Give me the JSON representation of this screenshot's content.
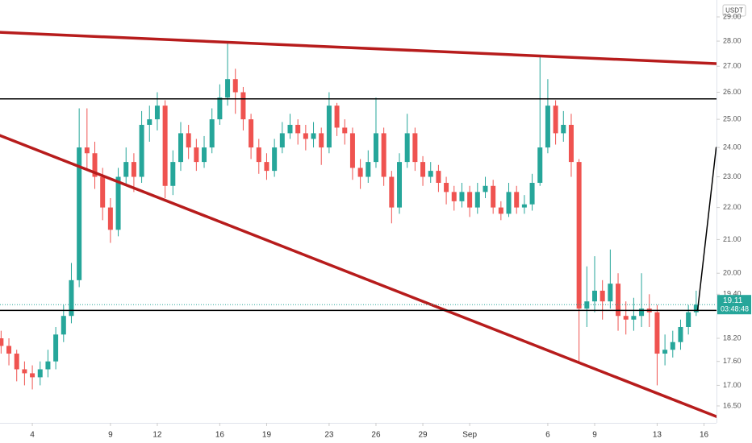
{
  "chart_data": {
    "type": "candlestick",
    "currency": "USDT",
    "last_price_label": "19.11",
    "countdown": "03:48:48",
    "log_scale": true,
    "grid": false,
    "up_color": "#26a69a",
    "down_color": "#ef5350",
    "xlim": [
      -2.07,
      43.8
    ],
    "ylim": [
      16.1,
      29.72
    ],
    "xticks": [
      {
        "value": 0,
        "label": "4"
      },
      {
        "value": 5,
        "label": "9"
      },
      {
        "value": 8,
        "label": "12"
      },
      {
        "value": 12,
        "label": "16"
      },
      {
        "value": 15,
        "label": "19"
      },
      {
        "value": 19,
        "label": "23"
      },
      {
        "value": 22,
        "label": "26"
      },
      {
        "value": 25,
        "label": "29"
      },
      {
        "value": 28,
        "label": "Sep"
      },
      {
        "value": 33,
        "label": "6"
      },
      {
        "value": 36,
        "label": "9"
      },
      {
        "value": 40,
        "label": "13"
      },
      {
        "value": 43,
        "label": "16"
      }
    ],
    "yticks": [
      {
        "value": 29,
        "label": "29.00"
      },
      {
        "value": 28,
        "label": "28.00"
      },
      {
        "value": 27,
        "label": "27.00"
      },
      {
        "value": 26,
        "label": "26.00"
      },
      {
        "value": 25,
        "label": "25.00"
      },
      {
        "value": 24,
        "label": "24.00"
      },
      {
        "value": 23,
        "label": "23.00"
      },
      {
        "value": 22,
        "label": "22.00"
      },
      {
        "value": 21,
        "label": "21.00"
      },
      {
        "value": 20,
        "label": "20.00"
      },
      {
        "value": 19.4,
        "label": "19.40"
      },
      {
        "value": 18.2,
        "label": "18.20"
      },
      {
        "value": 17.6,
        "label": "17.60"
      },
      {
        "value": 17,
        "label": "17.00"
      },
      {
        "value": 16.5,
        "label": "16.50"
      }
    ],
    "x": [
      -2,
      -1.5,
      -1,
      -0.5,
      0,
      0.5,
      1,
      1.5,
      2,
      2.5,
      3,
      3.5,
      4,
      4.5,
      5,
      5.5,
      6,
      6.5,
      7,
      7.5,
      8,
      8.5,
      9,
      9.5,
      10,
      10.5,
      11,
      11.5,
      12,
      12.5,
      13,
      13.5,
      14,
      14.5,
      15,
      15.5,
      16,
      16.5,
      17,
      17.5,
      18,
      18.5,
      19,
      19.5,
      20,
      20.5,
      21,
      21.5,
      22,
      22.5,
      23,
      23.5,
      24,
      24.5,
      25,
      25.5,
      26,
      26.5,
      27,
      27.5,
      28,
      28.5,
      29,
      29.5,
      30,
      30.5,
      31,
      31.5,
      32,
      32.5,
      33,
      33.5,
      34,
      34.5,
      35,
      35.5,
      36,
      36.5,
      37,
      37.5,
      38,
      38.5,
      39,
      39.5,
      40,
      40.5,
      41,
      41.5,
      42,
      42.5
    ],
    "open": [
      18.2,
      18.0,
      17.8,
      17.4,
      17.3,
      17.2,
      17.4,
      17.6,
      18.3,
      18.8,
      19.8,
      24.0,
      23.8,
      23.0,
      22.0,
      21.3,
      23.0,
      23.5,
      23.0,
      24.8,
      25.0,
      25.5,
      22.7,
      23.5,
      24.5,
      24.0,
      23.5,
      24.0,
      25.0,
      25.8,
      26.5,
      26.0,
      25.0,
      24.0,
      23.5,
      23.2,
      24.0,
      24.5,
      24.8,
      24.5,
      24.3,
      24.5,
      24.0,
      25.5,
      24.7,
      24.5,
      23.3,
      23.0,
      23.5,
      24.5,
      23.0,
      22.0,
      23.5,
      24.5,
      23.5,
      23.0,
      23.2,
      22.8,
      22.5,
      22.2,
      22.5,
      22.0,
      22.5,
      22.7,
      22.0,
      21.8,
      22.5,
      22.0,
      22.1,
      22.8,
      24.0,
      25.5,
      24.5,
      24.8,
      23.5,
      19.0,
      19.2,
      19.5,
      19.2,
      19.7,
      18.8,
      18.7,
      18.8,
      19.0,
      18.9,
      17.8,
      17.9,
      18.1,
      18.5,
      18.9
    ],
    "high": [
      18.4,
      18.2,
      17.9,
      17.6,
      17.5,
      17.6,
      17.9,
      18.5,
      19.1,
      20.3,
      25.4,
      25.4,
      24.2,
      23.3,
      22.3,
      23.3,
      24.0,
      23.8,
      25.3,
      25.5,
      26.0,
      25.7,
      23.9,
      24.9,
      24.8,
      24.3,
      24.4,
      25.4,
      26.3,
      27.9,
      26.9,
      26.2,
      25.2,
      24.3,
      23.8,
      24.3,
      24.9,
      25.2,
      25.0,
      24.8,
      24.9,
      24.7,
      26.0,
      25.6,
      25.0,
      24.7,
      23.6,
      23.9,
      25.8,
      24.7,
      23.2,
      23.8,
      25.2,
      24.7,
      23.7,
      23.5,
      23.4,
      23.0,
      22.7,
      22.8,
      22.7,
      22.8,
      23.0,
      22.9,
      22.2,
      22.8,
      22.7,
      22.4,
      23.1,
      27.4,
      26.5,
      25.7,
      25.3,
      25.2,
      23.6,
      20.2,
      20.5,
      19.8,
      20.7,
      20.0,
      19.2,
      19.3,
      20.0,
      19.4,
      19.1,
      18.3,
      18.4,
      18.7,
      19.1,
      19.5
    ],
    "low": [
      17.8,
      17.5,
      17.1,
      17.0,
      16.9,
      17.0,
      17.2,
      17.4,
      18.1,
      18.6,
      19.6,
      23.2,
      22.6,
      21.6,
      20.9,
      21.1,
      22.7,
      22.5,
      22.8,
      24.2,
      24.6,
      22.3,
      22.4,
      23.2,
      23.6,
      23.2,
      23.3,
      23.8,
      24.8,
      25.5,
      25.2,
      24.6,
      23.6,
      23.1,
      22.9,
      23.0,
      23.8,
      24.3,
      24.1,
      23.9,
      24.0,
      23.4,
      23.8,
      24.4,
      24.1,
      22.9,
      22.6,
      22.8,
      23.3,
      22.7,
      21.5,
      21.8,
      23.3,
      23.2,
      22.7,
      22.8,
      22.5,
      22.1,
      21.9,
      22.0,
      21.7,
      21.8,
      22.3,
      21.8,
      21.6,
      21.7,
      21.8,
      21.8,
      21.9,
      22.7,
      23.8,
      24.1,
      24.2,
      23.0,
      17.6,
      18.5,
      18.9,
      18.7,
      19.0,
      18.4,
      18.3,
      18.4,
      18.5,
      18.5,
      17.0,
      17.5,
      17.7,
      17.9,
      18.3,
      18.8
    ],
    "close": [
      18.0,
      17.8,
      17.4,
      17.3,
      17.2,
      17.4,
      17.6,
      18.3,
      18.8,
      19.8,
      24.0,
      23.8,
      23.0,
      22.0,
      21.3,
      23.0,
      23.5,
      23.0,
      24.8,
      25.0,
      25.5,
      22.7,
      23.5,
      24.5,
      24.0,
      23.5,
      24.0,
      25.0,
      25.8,
      26.5,
      26.0,
      25.0,
      24.0,
      23.5,
      23.2,
      24.0,
      24.5,
      24.8,
      24.5,
      24.3,
      24.5,
      24.0,
      25.5,
      24.7,
      24.5,
      23.3,
      23.0,
      23.5,
      24.5,
      23.0,
      22.0,
      23.5,
      24.5,
      23.5,
      23.0,
      23.2,
      22.8,
      22.5,
      22.2,
      22.5,
      22.0,
      22.5,
      22.7,
      22.0,
      21.8,
      22.5,
      22.0,
      22.1,
      22.8,
      24.0,
      25.5,
      24.5,
      24.8,
      23.5,
      19.0,
      19.2,
      19.5,
      19.2,
      19.7,
      18.8,
      18.7,
      18.8,
      19.0,
      18.9,
      17.8,
      17.9,
      18.1,
      18.5,
      18.9,
      19.11
    ],
    "lines": [
      {
        "x": [
          -2.07,
          43.78
        ],
        "y": [
          28.36,
          27.1
        ],
        "color": "#b71c1c",
        "width": 3.5
      },
      {
        "x": [
          -2.07,
          43.78
        ],
        "y": [
          24.42,
          16.25
        ],
        "color": "#b71c1c",
        "width": 3.5
      },
      {
        "x": [
          -2.07,
          43.78
        ],
        "y": [
          25.75,
          25.75
        ],
        "color": "#000000",
        "width": 1.5
      },
      {
        "x": [
          -2.07,
          43.78
        ],
        "y": [
          18.95,
          18.95
        ],
        "color": "#000000",
        "width": 1.5
      },
      {
        "x": [
          42.59,
          43.78
        ],
        "y": [
          18.95,
          24.0
        ],
        "color": "#000000",
        "width": 1.5
      }
    ]
  }
}
